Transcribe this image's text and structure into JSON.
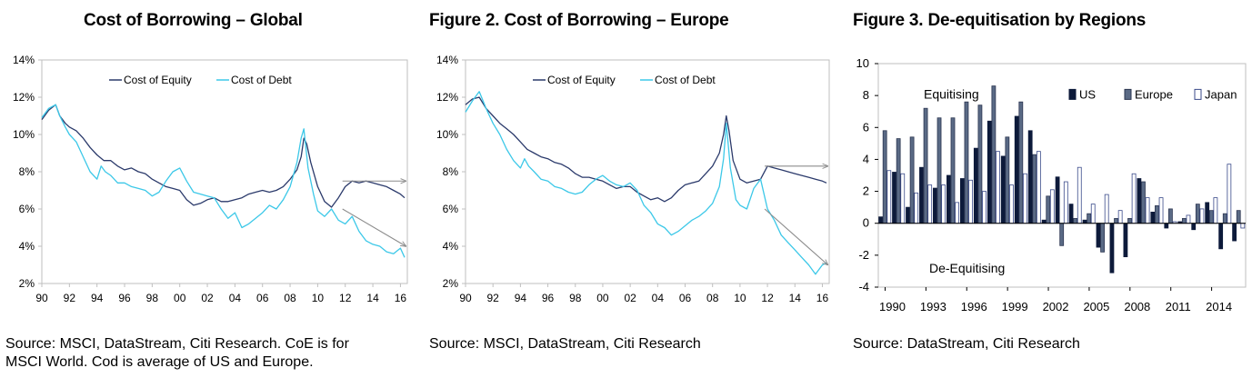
{
  "colors": {
    "equity": "#2b3a6b",
    "debt": "#3cc8e8",
    "frame": "#bfbfbf",
    "arrow": "#8c8c8c",
    "us": "#0d1a3a",
    "europe": "#5a6a85",
    "japan": "#ffffff",
    "japan_edge": "#3a4a8a"
  },
  "chart_data": [
    {
      "type": "line",
      "title": "Cost of Borrowing – Global",
      "source": "Source: MSCI, DataStream, Citi Research. CoE is for MSCI World. Cod is average of US and Europe.",
      "source_lines": [
        "Source: MSCI, DataStream, Citi Research. CoE is for",
        "MSCI World. Cod is average of US and Europe."
      ],
      "x_ticks": [
        "90",
        "92",
        "94",
        "96",
        "98",
        "00",
        "02",
        "04",
        "06",
        "08",
        "10",
        "12",
        "14",
        "16"
      ],
      "y_ticks": [
        "14%",
        "12%",
        "10%",
        "8%",
        "6%",
        "4%",
        "2%"
      ],
      "xlim": [
        1990,
        2016.5
      ],
      "ylim": [
        2,
        14
      ],
      "legend": [
        "Cost of Equity",
        "Cost of Debt"
      ],
      "series": [
        {
          "name": "Cost of Equity",
          "x": [
            1990,
            1990.5,
            1991,
            1991.3,
            1991.7,
            1992,
            1992.5,
            1993,
            1993.5,
            1994,
            1994.5,
            1995,
            1995.5,
            1996,
            1996.5,
            1997,
            1997.5,
            1998,
            1998.5,
            1999,
            1999.5,
            2000,
            2000.5,
            2001,
            2001.5,
            2002,
            2002.5,
            2003,
            2003.5,
            2004,
            2004.5,
            2005,
            2005.5,
            2006,
            2006.5,
            2007,
            2007.5,
            2008,
            2008.5,
            2008.8,
            2009,
            2009.2,
            2009.5,
            2010,
            2010.5,
            2011,
            2011.5,
            2012,
            2012.5,
            2013,
            2013.5,
            2014,
            2014.5,
            2015,
            2015.5,
            2016,
            2016.3
          ],
          "y": [
            10.8,
            11.3,
            11.6,
            11.0,
            10.6,
            10.4,
            10.2,
            9.8,
            9.3,
            8.9,
            8.6,
            8.6,
            8.3,
            8.1,
            8.2,
            8.0,
            7.9,
            7.6,
            7.4,
            7.2,
            7.1,
            7.0,
            6.5,
            6.2,
            6.3,
            6.5,
            6.6,
            6.4,
            6.4,
            6.5,
            6.6,
            6.8,
            6.9,
            7.0,
            6.9,
            7.0,
            7.2,
            7.6,
            8.1,
            8.8,
            9.8,
            9.5,
            8.5,
            7.2,
            6.4,
            6.1,
            6.6,
            7.2,
            7.5,
            7.4,
            7.5,
            7.4,
            7.3,
            7.2,
            7.0,
            6.8,
            6.6
          ]
        },
        {
          "name": "Cost of Debt",
          "x": [
            1990,
            1990.5,
            1991,
            1991.3,
            1991.7,
            1992,
            1992.5,
            1993,
            1993.5,
            1994,
            1994.3,
            1994.6,
            1995,
            1995.5,
            1996,
            1996.5,
            1997,
            1997.5,
            1998,
            1998.5,
            1999,
            1999.5,
            2000,
            2000.5,
            2001,
            2001.5,
            2002,
            2002.5,
            2003,
            2003.5,
            2004,
            2004.5,
            2005,
            2005.5,
            2006,
            2006.5,
            2007,
            2007.5,
            2008,
            2008.5,
            2008.8,
            2009,
            2009.3,
            2009.7,
            2010,
            2010.5,
            2011,
            2011.5,
            2012,
            2012.5,
            2013,
            2013.5,
            2014,
            2014.5,
            2015,
            2015.5,
            2016,
            2016.3
          ],
          "y": [
            10.9,
            11.4,
            11.6,
            11.0,
            10.4,
            10.0,
            9.6,
            8.8,
            8.0,
            7.6,
            8.3,
            8.0,
            7.8,
            7.4,
            7.4,
            7.2,
            7.1,
            7.0,
            6.7,
            6.9,
            7.5,
            8.0,
            8.2,
            7.5,
            6.9,
            6.8,
            6.7,
            6.6,
            6.0,
            5.5,
            5.8,
            5.0,
            5.2,
            5.5,
            5.8,
            6.2,
            6.0,
            6.5,
            7.2,
            8.5,
            9.8,
            10.3,
            8.2,
            6.8,
            5.9,
            5.6,
            6.0,
            5.4,
            5.2,
            5.6,
            4.8,
            4.3,
            4.1,
            4.0,
            3.7,
            3.6,
            3.9,
            3.4
          ]
        }
      ],
      "annotations": [
        {
          "type": "arrow",
          "from": [
            2011.8,
            7.5
          ],
          "to": [
            2016.4,
            7.5
          ]
        },
        {
          "type": "arrow",
          "from": [
            2011.8,
            6.0
          ],
          "to": [
            2016.4,
            4.0
          ]
        }
      ]
    },
    {
      "type": "line",
      "title": "Figure 2. Cost of Borrowing – Europe",
      "source": "Source: MSCI, DataStream, Citi Research",
      "x_ticks": [
        "90",
        "92",
        "94",
        "96",
        "98",
        "00",
        "02",
        "04",
        "06",
        "08",
        "10",
        "12",
        "14",
        "16"
      ],
      "y_ticks": [
        "14%",
        "12%",
        "10%",
        "8%",
        "6%",
        "4%",
        "2%"
      ],
      "xlim": [
        1990,
        2016.5
      ],
      "ylim": [
        2,
        14
      ],
      "legend": [
        "Cost of Equity",
        "Cost of Debt"
      ],
      "series": [
        {
          "name": "Cost of Equity",
          "x": [
            1990,
            1990.5,
            1991,
            1991.5,
            1992,
            1992.5,
            1993,
            1993.5,
            1994,
            1994.5,
            1995,
            1995.5,
            1996,
            1996.5,
            1997,
            1997.5,
            1998,
            1998.5,
            1999,
            1999.5,
            2000,
            2000.5,
            2001,
            2001.5,
            2002,
            2002.5,
            2003,
            2003.5,
            2004,
            2004.5,
            2005,
            2005.5,
            2006,
            2006.5,
            2007,
            2007.5,
            2008,
            2008.5,
            2008.8,
            2009,
            2009.2,
            2009.5,
            2010,
            2010.5,
            2011,
            2011.5,
            2012,
            2012.5,
            2013,
            2013.5,
            2014,
            2014.5,
            2015,
            2015.5,
            2016,
            2016.3
          ],
          "y": [
            11.6,
            11.9,
            12.0,
            11.4,
            11.0,
            10.6,
            10.3,
            10.0,
            9.6,
            9.2,
            9.0,
            8.8,
            8.7,
            8.5,
            8.4,
            8.2,
            7.9,
            7.7,
            7.7,
            7.6,
            7.5,
            7.3,
            7.1,
            7.2,
            7.2,
            6.9,
            6.7,
            6.5,
            6.6,
            6.4,
            6.6,
            7.0,
            7.3,
            7.4,
            7.5,
            7.9,
            8.3,
            9.0,
            10.0,
            11.0,
            10.2,
            8.6,
            7.6,
            7.4,
            7.5,
            7.6,
            8.3,
            8.2,
            8.1,
            8.0,
            7.9,
            7.8,
            7.7,
            7.6,
            7.5,
            7.4
          ]
        },
        {
          "name": "Cost of Debt",
          "x": [
            1990,
            1990.5,
            1991,
            1991.5,
            1992,
            1992.5,
            1993,
            1993.5,
            1994,
            1994.3,
            1994.6,
            1995,
            1995.5,
            1996,
            1996.5,
            1997,
            1997.5,
            1998,
            1998.5,
            1999,
            1999.5,
            2000,
            2000.5,
            2001,
            2001.5,
            2002,
            2002.5,
            2003,
            2003.5,
            2004,
            2004.5,
            2005,
            2005.5,
            2006,
            2006.5,
            2007,
            2007.5,
            2008,
            2008.5,
            2008.8,
            2009,
            2009.3,
            2009.7,
            2010,
            2010.5,
            2011,
            2011.5,
            2012,
            2012.5,
            2013,
            2013.5,
            2014,
            2014.5,
            2015,
            2015.5,
            2016,
            2016.3
          ],
          "y": [
            11.2,
            11.8,
            12.3,
            11.4,
            10.6,
            10.0,
            9.2,
            8.6,
            8.2,
            8.7,
            8.3,
            8.0,
            7.6,
            7.5,
            7.2,
            7.1,
            6.9,
            6.8,
            6.9,
            7.3,
            7.6,
            7.8,
            7.5,
            7.3,
            7.2,
            7.4,
            7.0,
            6.2,
            5.8,
            5.2,
            5.0,
            4.6,
            4.8,
            5.1,
            5.4,
            5.6,
            5.9,
            6.3,
            7.2,
            8.7,
            10.6,
            8.2,
            6.5,
            6.2,
            6.0,
            7.1,
            7.6,
            6.0,
            5.4,
            4.6,
            4.2,
            3.8,
            3.4,
            3.0,
            2.5,
            3.0,
            3.1
          ]
        }
      ],
      "annotations": [
        {
          "type": "arrow",
          "from": [
            2011.8,
            8.3
          ],
          "to": [
            2016.4,
            8.3
          ]
        },
        {
          "type": "arrow",
          "from": [
            2011.8,
            6.0
          ],
          "to": [
            2016.4,
            3.0
          ]
        }
      ]
    },
    {
      "type": "bar",
      "title": "Figure 3. De-equitisation by Regions",
      "source": "Source: DataStream, Citi Research",
      "x_ticks": [
        "1990",
        "1993",
        "1996",
        "1999",
        "2002",
        "2005",
        "2008",
        "2011",
        "2014"
      ],
      "y_ticks": [
        10,
        8,
        6,
        4,
        2,
        0,
        -2,
        -4
      ],
      "ylim": [
        -4,
        10
      ],
      "annotations_text": [
        "Equitising",
        "De-Equitising"
      ],
      "categories": [
        1990,
        1991,
        1992,
        1993,
        1994,
        1995,
        1996,
        1997,
        1998,
        1999,
        2000,
        2001,
        2002,
        2003,
        2004,
        2005,
        2006,
        2007,
        2008,
        2009,
        2010,
        2011,
        2012,
        2013,
        2014,
        2015,
        2016
      ],
      "series": [
        {
          "name": "US",
          "values": [
            0.4,
            3.2,
            1.0,
            3.5,
            2.2,
            3.0,
            2.8,
            4.7,
            6.4,
            4.2,
            6.7,
            5.8,
            0.2,
            2.9,
            1.2,
            0.2,
            -1.5,
            -3.1,
            -2.1,
            2.8,
            0.7,
            -0.3,
            0.1,
            -0.4,
            1.3,
            -1.6,
            -1.1
          ]
        },
        {
          "name": "Europe",
          "values": [
            5.8,
            5.3,
            5.4,
            7.2,
            6.6,
            6.6,
            7.6,
            7.4,
            8.6,
            5.4,
            7.6,
            4.3,
            1.7,
            -1.4,
            0.3,
            0.6,
            -1.8,
            0.3,
            0.3,
            2.6,
            1.1,
            0.9,
            0.3,
            1.2,
            0.8,
            0.6,
            0.8
          ]
        },
        {
          "name": "Japan",
          "values": [
            3.3,
            3.1,
            1.9,
            2.4,
            2.4,
            1.3,
            2.7,
            2.0,
            4.5,
            2.4,
            3.1,
            4.5,
            2.1,
            2.6,
            3.5,
            1.2,
            1.8,
            0.8,
            3.1,
            1.6,
            1.6,
            0.1,
            0.5,
            0.9,
            1.6,
            3.7,
            -0.3
          ]
        }
      ]
    }
  ]
}
